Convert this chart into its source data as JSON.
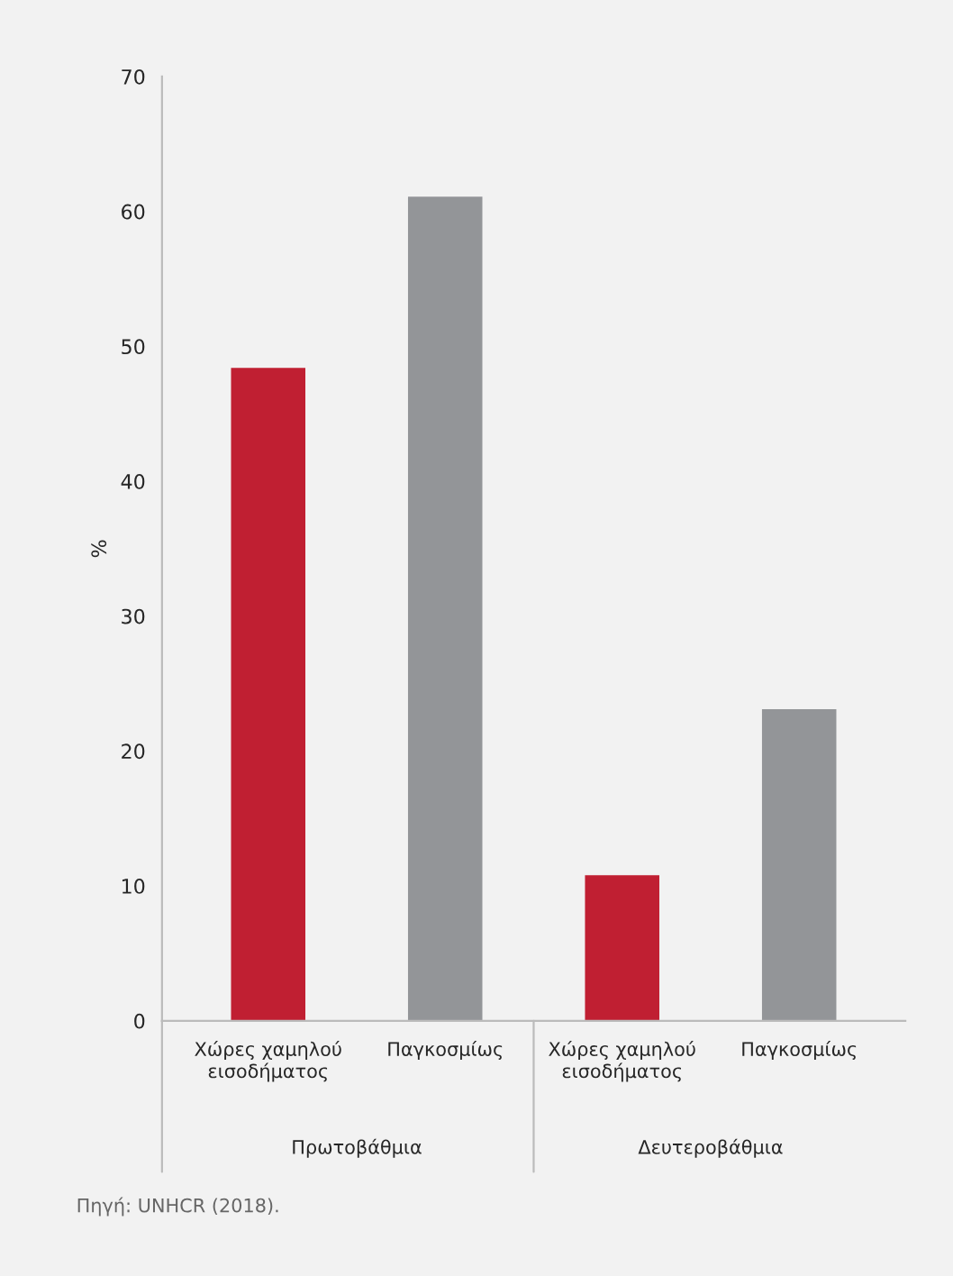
{
  "chart_data": {
    "type": "bar",
    "categories": [
      "Χώρες χαμηλού\nεισοδήματος",
      "Παγκοσμίως",
      "Χώρες χαμηλού\nεισοδήματος",
      "Παγκοσμίως"
    ],
    "values": [
      48.4,
      61.1,
      10.8,
      23.1
    ],
    "colors": [
      "#c01f32",
      "#939598",
      "#c01f32",
      "#939598"
    ],
    "ylabel": "%",
    "ylim": [
      0,
      70
    ],
    "yticks": [
      0,
      10,
      20,
      30,
      40,
      50,
      60,
      70
    ],
    "grid": false,
    "legend": false,
    "annotations": [
      "Πρωτοβάθμια",
      "Δευτεροβάθμια",
      "Πηγή: UNHCR (2018)."
    ]
  }
}
